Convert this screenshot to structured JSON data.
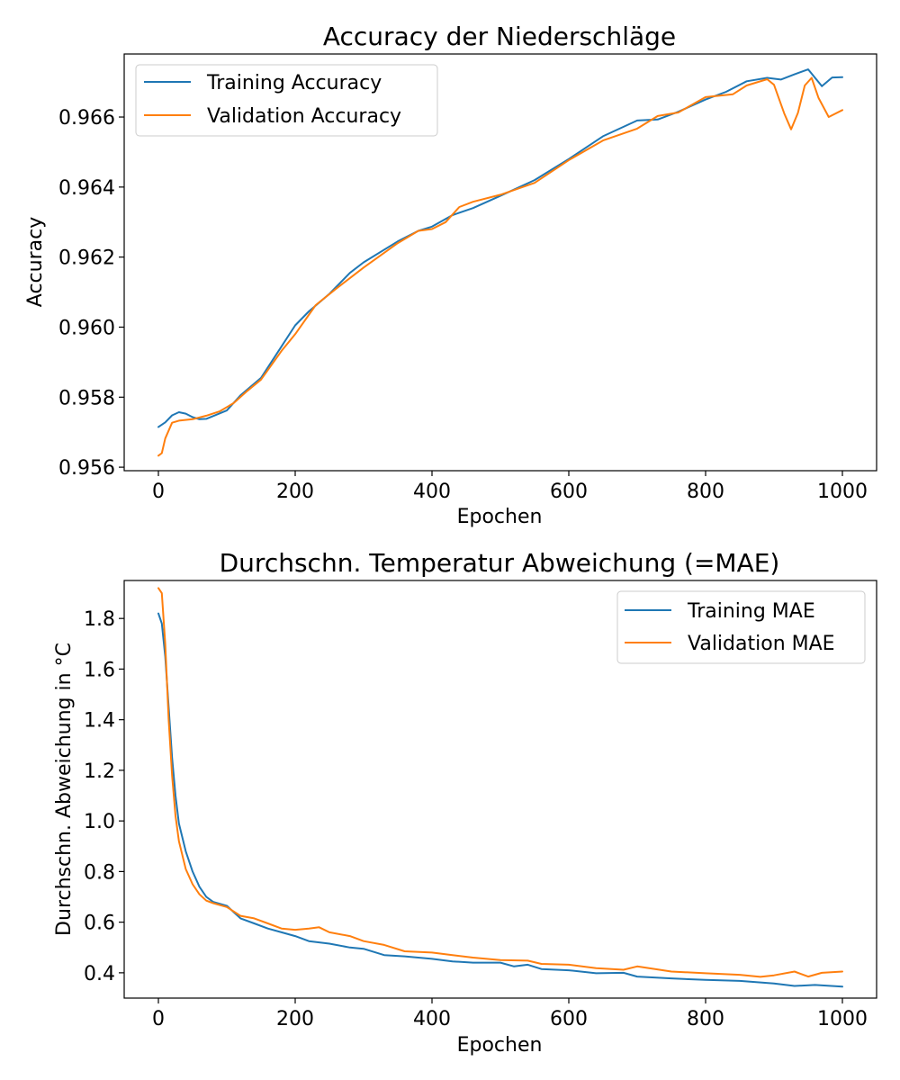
{
  "chart_data": [
    {
      "type": "line",
      "title": "Accuracy der Niederschläge",
      "xlabel": "Epochen",
      "ylabel": "Accuracy",
      "xlim": [
        -50,
        1050
      ],
      "ylim": [
        0.9559,
        0.9678
      ],
      "xticks": [
        0,
        200,
        400,
        600,
        800,
        1000
      ],
      "xtick_labels": [
        "0",
        "200",
        "400",
        "600",
        "800",
        "1000"
      ],
      "yticks": [
        0.956,
        0.958,
        0.96,
        0.962,
        0.964,
        0.966
      ],
      "ytick_labels": [
        "0.956",
        "0.958",
        "0.960",
        "0.962",
        "0.964",
        "0.966"
      ],
      "grid": false,
      "legend_position": "top-left",
      "series": [
        {
          "name": "Training Accuracy",
          "color": "#1f77b4",
          "x": [
            0,
            10,
            20,
            30,
            40,
            50,
            60,
            70,
            80,
            100,
            120,
            150,
            180,
            200,
            220,
            250,
            280,
            300,
            350,
            380,
            400,
            430,
            460,
            500,
            550,
            600,
            650,
            700,
            730,
            760,
            800,
            830,
            860,
            890,
            910,
            930,
            950,
            970,
            985,
            1000
          ],
          "y": [
            0.95715,
            0.95728,
            0.95748,
            0.95757,
            0.95753,
            0.95743,
            0.95737,
            0.95738,
            0.95746,
            0.95762,
            0.95805,
            0.95855,
            0.95945,
            0.96005,
            0.96045,
            0.96095,
            0.96155,
            0.96185,
            0.96245,
            0.96275,
            0.96287,
            0.9632,
            0.9634,
            0.96375,
            0.9642,
            0.9648,
            0.96545,
            0.9659,
            0.96593,
            0.96615,
            0.9665,
            0.96672,
            0.96702,
            0.96712,
            0.96707,
            0.96722,
            0.96736,
            0.96688,
            0.96713,
            0.96714
          ]
        },
        {
          "name": "Validation Accuracy",
          "color": "#ff7f0e",
          "x": [
            0,
            5,
            10,
            20,
            30,
            50,
            70,
            90,
            110,
            130,
            150,
            180,
            200,
            230,
            260,
            300,
            350,
            380,
            400,
            420,
            440,
            460,
            500,
            550,
            600,
            650,
            700,
            730,
            760,
            800,
            840,
            860,
            890,
            900,
            915,
            925,
            935,
            945,
            955,
            965,
            980,
            1000
          ],
          "y": [
            0.95633,
            0.9564,
            0.95682,
            0.95727,
            0.95733,
            0.95737,
            0.95747,
            0.9576,
            0.95783,
            0.95818,
            0.9585,
            0.95932,
            0.9598,
            0.96063,
            0.9611,
            0.9617,
            0.9624,
            0.96275,
            0.9628,
            0.963,
            0.96343,
            0.96358,
            0.96378,
            0.96412,
            0.96477,
            0.96533,
            0.96567,
            0.96603,
            0.96613,
            0.96657,
            0.96665,
            0.9669,
            0.96708,
            0.96692,
            0.9661,
            0.96565,
            0.96612,
            0.9669,
            0.96712,
            0.96655,
            0.966,
            0.9662
          ]
        }
      ]
    },
    {
      "type": "line",
      "title": "Durchschn. Temperatur Abweichung (=MAE)",
      "xlabel": "Epochen",
      "ylabel": "Durchschn. Abweichung in °C",
      "xlim": [
        -50,
        1050
      ],
      "ylim": [
        0.3,
        1.95
      ],
      "xticks": [
        0,
        200,
        400,
        600,
        800,
        1000
      ],
      "xtick_labels": [
        "0",
        "200",
        "400",
        "600",
        "800",
        "1000"
      ],
      "yticks": [
        0.4,
        0.6,
        0.8,
        1.0,
        1.2,
        1.4,
        1.6,
        1.8
      ],
      "ytick_labels": [
        "0.4",
        "0.6",
        "0.8",
        "1.0",
        "1.2",
        "1.4",
        "1.6",
        "1.8"
      ],
      "grid": false,
      "legend_position": "top-right",
      "series": [
        {
          "name": "Training MAE",
          "color": "#1f77b4",
          "x": [
            0,
            5,
            10,
            15,
            20,
            25,
            30,
            40,
            50,
            60,
            70,
            80,
            100,
            120,
            140,
            160,
            180,
            200,
            220,
            250,
            280,
            300,
            330,
            360,
            400,
            430,
            460,
            500,
            520,
            540,
            560,
            600,
            640,
            680,
            700,
            750,
            800,
            850,
            900,
            930,
            960,
            1000
          ],
          "y": [
            1.82,
            1.78,
            1.65,
            1.45,
            1.25,
            1.1,
            0.99,
            0.88,
            0.8,
            0.74,
            0.7,
            0.68,
            0.665,
            0.615,
            0.595,
            0.575,
            0.56,
            0.545,
            0.525,
            0.515,
            0.5,
            0.495,
            0.47,
            0.465,
            0.455,
            0.445,
            0.44,
            0.44,
            0.425,
            0.432,
            0.415,
            0.41,
            0.398,
            0.4,
            0.385,
            0.378,
            0.372,
            0.368,
            0.358,
            0.348,
            0.352,
            0.345
          ]
        },
        {
          "name": "Validation MAE",
          "color": "#ff7f0e",
          "x": [
            0,
            5,
            10,
            15,
            20,
            25,
            30,
            40,
            50,
            60,
            70,
            80,
            100,
            120,
            140,
            160,
            180,
            200,
            220,
            235,
            250,
            280,
            300,
            330,
            360,
            400,
            430,
            460,
            500,
            540,
            560,
            600,
            640,
            680,
            700,
            750,
            800,
            850,
            880,
            900,
            930,
            950,
            970,
            1000
          ],
          "y": [
            1.92,
            1.9,
            1.7,
            1.4,
            1.18,
            1.02,
            0.92,
            0.81,
            0.75,
            0.71,
            0.685,
            0.675,
            0.66,
            0.625,
            0.615,
            0.595,
            0.575,
            0.57,
            0.575,
            0.58,
            0.56,
            0.545,
            0.525,
            0.51,
            0.485,
            0.48,
            0.47,
            0.46,
            0.45,
            0.448,
            0.435,
            0.432,
            0.418,
            0.412,
            0.425,
            0.405,
            0.398,
            0.392,
            0.384,
            0.39,
            0.405,
            0.385,
            0.4,
            0.405
          ]
        }
      ]
    }
  ]
}
